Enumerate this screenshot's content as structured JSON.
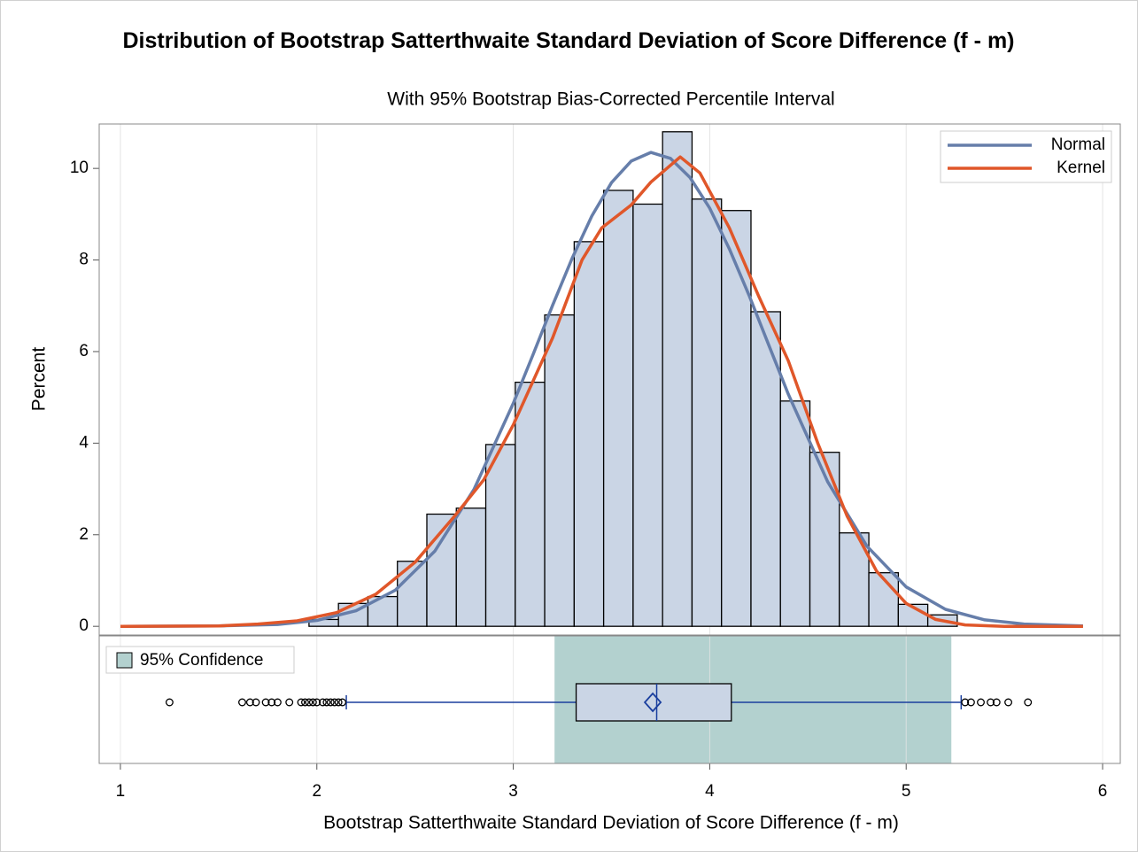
{
  "chart_data": {
    "type": "histogram",
    "title": "Distribution of Bootstrap Satterthwaite Standard Deviation of Score Difference (f - m)",
    "subtitle": "With 95% Bootstrap Bias-Corrected Percentile Interval",
    "xlabel": "Bootstrap Satterthwaite Standard Deviation of Score Difference (f - m)",
    "ylabel": "Percent",
    "bins": [
      1.96,
      2.11,
      2.26,
      2.41,
      2.56,
      2.71,
      2.86,
      3.01,
      3.16,
      3.31,
      3.46,
      3.61,
      3.76,
      3.91,
      4.06,
      4.21,
      4.36,
      4.51,
      4.66,
      4.81,
      4.96,
      5.11,
      5.26
    ],
    "values": [
      0.15,
      0.5,
      0.65,
      1.42,
      2.45,
      2.58,
      3.97,
      5.33,
      6.8,
      8.4,
      9.52,
      9.22,
      10.8,
      9.33,
      9.08,
      6.87,
      4.92,
      3.8,
      2.04,
      1.17,
      0.48,
      0.25
    ],
    "color": "#cad5e5",
    "xlim": [
      0.892,
      6.09
    ],
    "ylim": [
      -0.19,
      10.97
    ],
    "xticks": [
      1,
      2,
      3,
      4,
      5,
      6
    ],
    "yticks": [
      0,
      2,
      4,
      6,
      8,
      10
    ],
    "grid": true,
    "legend": "upper right",
    "series": [
      {
        "name": "Normal",
        "color": "#667eaa",
        "x": [
          1,
          1.5,
          1.8,
          2,
          2.2,
          2.4,
          2.6,
          2.8,
          3,
          3.1,
          3.2,
          3.3,
          3.4,
          3.5,
          3.6,
          3.7,
          3.8,
          3.9,
          4,
          4.1,
          4.2,
          4.3,
          4.4,
          4.6,
          4.8,
          5,
          5.2,
          5.4,
          5.6,
          5.9
        ],
        "values": [
          0,
          0.01,
          0.04,
          0.13,
          0.34,
          0.79,
          1.64,
          2.99,
          4.87,
          5.93,
          7.01,
          8.04,
          8.96,
          9.69,
          10.16,
          10.35,
          10.22,
          9.8,
          9.13,
          8.24,
          7.23,
          6.15,
          5.07,
          3.16,
          1.75,
          0.86,
          0.37,
          0.14,
          0.05,
          0.01
        ]
      },
      {
        "name": "Kernel",
        "color": "#e0572a",
        "x": [
          1,
          1.5,
          1.7,
          1.9,
          2.1,
          2.3,
          2.5,
          2.7,
          2.85,
          3,
          3.2,
          3.35,
          3.45,
          3.6,
          3.7,
          3.85,
          3.95,
          4.1,
          4.25,
          4.4,
          4.55,
          4.7,
          4.85,
          5,
          5.15,
          5.3,
          5.5,
          5.9
        ],
        "values": [
          0,
          0.01,
          0.05,
          0.12,
          0.3,
          0.7,
          1.4,
          2.4,
          3.2,
          4.4,
          6.3,
          8,
          8.7,
          9.2,
          9.7,
          10.25,
          9.9,
          8.7,
          7.2,
          5.8,
          4,
          2.4,
          1.2,
          0.5,
          0.15,
          0.03,
          0,
          0
        ]
      }
    ],
    "boxplot": {
      "q1": 3.32,
      "median": 3.73,
      "q3": 4.11,
      "mean": 3.71,
      "whisker_low": 2.15,
      "whisker_high": 5.28,
      "outliers": [
        1.25,
        1.62,
        1.66,
        1.69,
        1.74,
        1.77,
        1.8,
        1.86,
        1.92,
        1.94,
        1.96,
        1.98,
        2.0,
        2.03,
        2.05,
        2.07,
        2.09,
        2.11,
        2.13,
        5.3,
        5.33,
        5.38,
        5.43,
        5.46,
        5.52,
        5.62
      ],
      "color": "#1a3f9e",
      "fill": "#cad5e5"
    },
    "confidence": {
      "name": "95% Confidence",
      "low": 3.21,
      "high": 5.23,
      "color": "#b3d1cf"
    }
  }
}
